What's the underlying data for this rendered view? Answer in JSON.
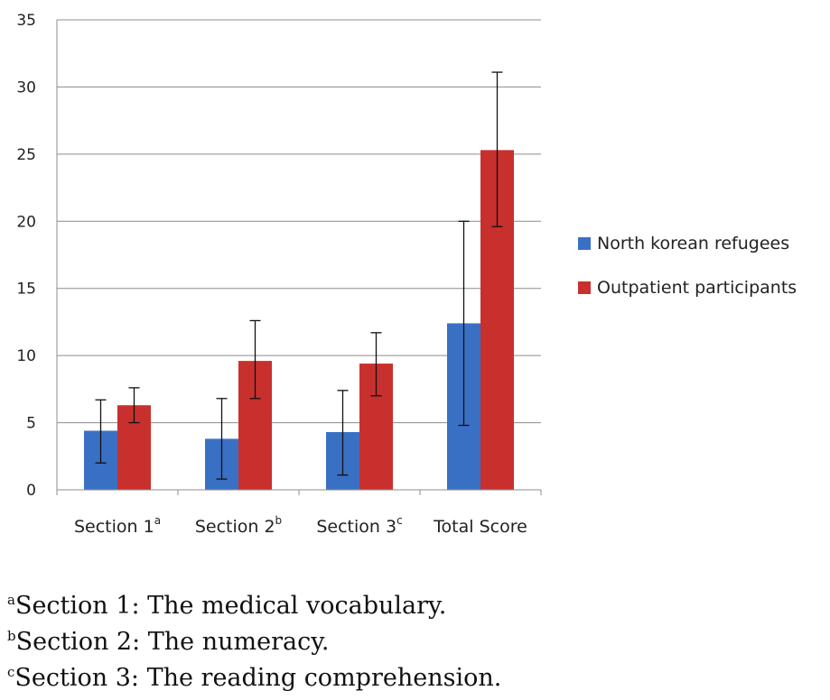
{
  "chart_data": {
    "type": "bar",
    "categories": [
      "Section 1",
      "Section 2",
      "Section 3",
      "Total Score"
    ],
    "category_superscripts": [
      "a",
      "b",
      "c",
      ""
    ],
    "ylim": [
      0,
      35
    ],
    "yticks": [
      0,
      5,
      10,
      15,
      20,
      25,
      30,
      35
    ],
    "grid": true,
    "legend_position": "right",
    "series": [
      {
        "name": "North korean refugees",
        "color": "#3a70c4",
        "values": [
          4.4,
          3.8,
          4.3,
          12.4
        ],
        "err_low": [
          2.0,
          0.8,
          1.1,
          4.8
        ],
        "err_high": [
          6.7,
          6.8,
          7.4,
          20.0
        ]
      },
      {
        "name": "Outpatient participants",
        "color": "#c8302e",
        "values": [
          6.3,
          9.6,
          9.4,
          25.3
        ],
        "err_low": [
          5.0,
          6.8,
          7.0,
          19.6
        ],
        "err_high": [
          7.6,
          12.6,
          11.7,
          31.1
        ]
      }
    ]
  },
  "footnotes": [
    {
      "mark": "a",
      "text": "Section 1: The medical vocabulary."
    },
    {
      "mark": "b",
      "text": "Section 2: The numeracy."
    },
    {
      "mark": "c",
      "text": "Section 3: The reading comprehension."
    }
  ]
}
